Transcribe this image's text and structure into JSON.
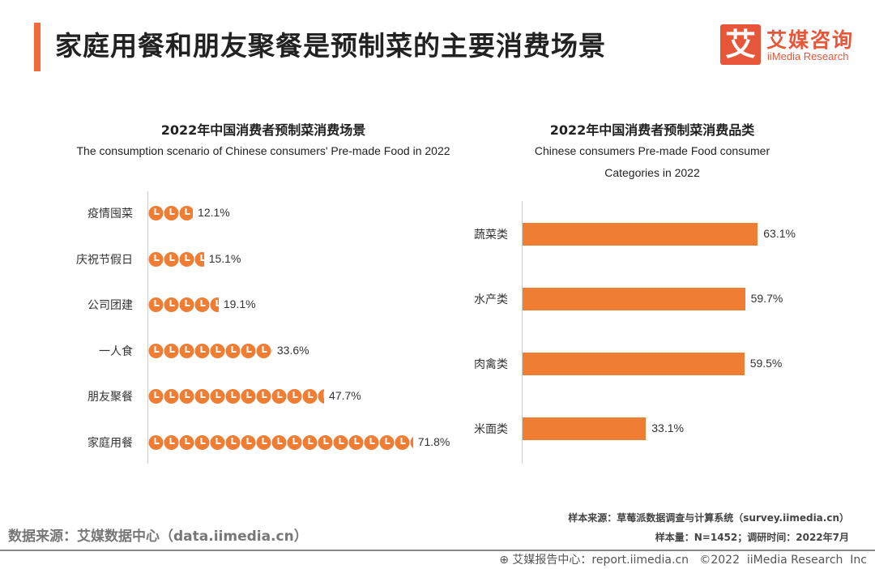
{
  "header": {
    "title": "家庭用餐和朋友聚餐是预制菜的主要消费场景",
    "logo_mark": "艾",
    "logo_cn": "艾媒咨询",
    "logo_en": "iiMedia Research"
  },
  "colors": {
    "accent": "#f26b3a",
    "bar": "#ef7d33"
  },
  "chart_data": [
    {
      "type": "bar",
      "icon": "clock-icon",
      "title": "2022年中国消费者预制菜消费场景",
      "subtitle": "The consumption scenario of Chinese consumers' Pre-made Food in 2022",
      "categories": [
        "疫情囤菜",
        "庆祝节假日",
        "公司团建",
        "一人食",
        "朋友聚餐",
        "家庭用餐"
      ],
      "values": [
        12.1,
        15.1,
        19.1,
        33.6,
        47.7,
        71.8
      ],
      "labels": [
        "12.1%",
        "15.1%",
        "19.1%",
        "33.6%",
        "47.7%",
        "71.8%"
      ],
      "unit": "%"
    },
    {
      "type": "bar",
      "title": "2022年中国消费者预制菜消费品类",
      "subtitle": "Chinese consumers Pre-made Food consumer Categories in 2022",
      "categories": [
        "蔬菜类",
        "水产类",
        "肉禽类",
        "米面类"
      ],
      "values": [
        63.1,
        59.7,
        59.5,
        33.1
      ],
      "labels": [
        "63.1%",
        "59.7%",
        "59.5%",
        "33.1%"
      ],
      "unit": "%"
    }
  ],
  "footer": {
    "source": "数据来源：艾媒数据中心（data.iimedia.cn）",
    "sample_source": "样本来源：草莓派数据调查与计算系统（survey.iimedia.cn）",
    "sample_size": "样本量：N=1452；调研时间：2022年7月",
    "copyright": "艾媒报告中心：report.iimedia.cn   ©2022  iiMedia Research  Inc"
  }
}
